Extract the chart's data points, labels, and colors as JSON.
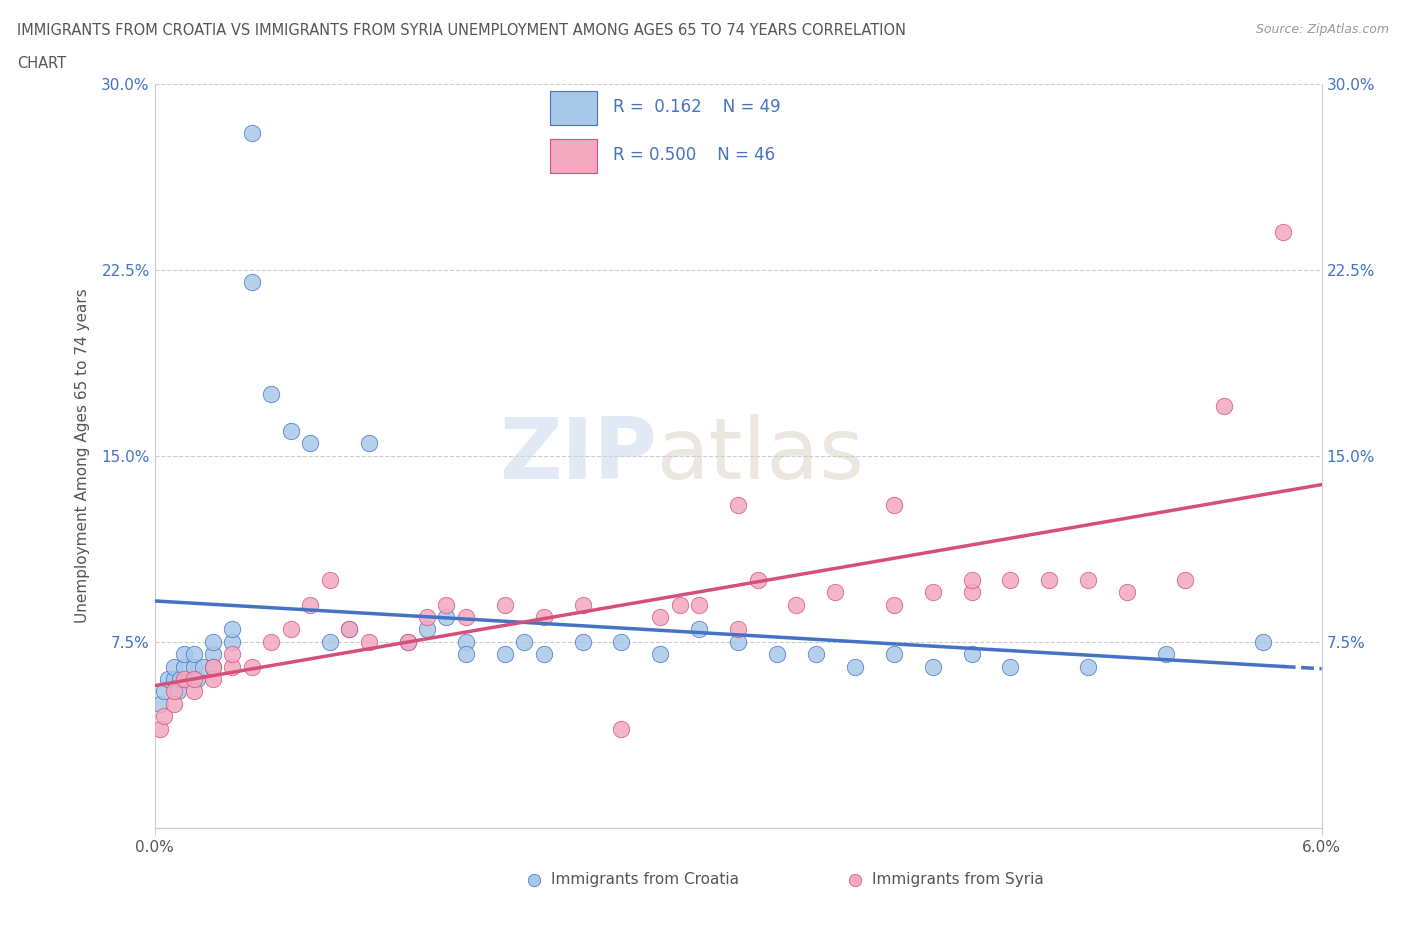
{
  "title_line1": "IMMIGRANTS FROM CROATIA VS IMMIGRANTS FROM SYRIA UNEMPLOYMENT AMONG AGES 65 TO 74 YEARS CORRELATION",
  "title_line2": "CHART",
  "source_text": "Source: ZipAtlas.com",
  "ylabel": "Unemployment Among Ages 65 to 74 years",
  "legend_label1": "Immigrants from Croatia",
  "legend_label2": "Immigrants from Syria",
  "color_croatia": "#a8c8e8",
  "color_syria": "#f4a8c0",
  "color_line_croatia": "#4472c4",
  "color_line_syria": "#d4507a",
  "color_tick_labels": "#4472c4",
  "xmin": 0.0,
  "xmax": 0.06,
  "ymin": 0.0,
  "ymax": 0.3,
  "ytick_pos": [
    0.075,
    0.15,
    0.225,
    0.3
  ],
  "ytick_labels": [
    "7.5%",
    "15.0%",
    "22.5%",
    "30.0%"
  ],
  "xtick_pos": [
    0.0,
    0.06
  ],
  "xtick_labels": [
    "0.0%",
    "6.0%"
  ],
  "croatia_x": [
    0.0003,
    0.0005,
    0.0007,
    0.001,
    0.001,
    0.0012,
    0.0013,
    0.0015,
    0.0015,
    0.002,
    0.002,
    0.0022,
    0.0025,
    0.003,
    0.003,
    0.003,
    0.004,
    0.004,
    0.005,
    0.005,
    0.006,
    0.007,
    0.008,
    0.009,
    0.01,
    0.011,
    0.013,
    0.014,
    0.015,
    0.016,
    0.016,
    0.018,
    0.019,
    0.02,
    0.022,
    0.024,
    0.026,
    0.028,
    0.03,
    0.032,
    0.034,
    0.036,
    0.038,
    0.04,
    0.042,
    0.044,
    0.048,
    0.052,
    0.057
  ],
  "croatia_y": [
    0.05,
    0.055,
    0.06,
    0.06,
    0.065,
    0.055,
    0.06,
    0.065,
    0.07,
    0.065,
    0.07,
    0.06,
    0.065,
    0.07,
    0.075,
    0.065,
    0.075,
    0.08,
    0.28,
    0.22,
    0.175,
    0.16,
    0.155,
    0.075,
    0.08,
    0.155,
    0.075,
    0.08,
    0.085,
    0.075,
    0.07,
    0.07,
    0.075,
    0.07,
    0.075,
    0.075,
    0.07,
    0.08,
    0.075,
    0.07,
    0.07,
    0.065,
    0.07,
    0.065,
    0.07,
    0.065,
    0.065,
    0.07,
    0.075
  ],
  "syria_x": [
    0.0003,
    0.0005,
    0.001,
    0.001,
    0.0015,
    0.002,
    0.002,
    0.003,
    0.003,
    0.004,
    0.004,
    0.005,
    0.006,
    0.007,
    0.008,
    0.009,
    0.01,
    0.011,
    0.013,
    0.014,
    0.015,
    0.016,
    0.018,
    0.02,
    0.022,
    0.024,
    0.026,
    0.028,
    0.03,
    0.031,
    0.033,
    0.035,
    0.038,
    0.04,
    0.042,
    0.044,
    0.046,
    0.03,
    0.038,
    0.042,
    0.048,
    0.05,
    0.053,
    0.027,
    0.055,
    0.058
  ],
  "syria_y": [
    0.04,
    0.045,
    0.05,
    0.055,
    0.06,
    0.055,
    0.06,
    0.06,
    0.065,
    0.065,
    0.07,
    0.065,
    0.075,
    0.08,
    0.09,
    0.1,
    0.08,
    0.075,
    0.075,
    0.085,
    0.09,
    0.085,
    0.09,
    0.085,
    0.09,
    0.04,
    0.085,
    0.09,
    0.08,
    0.1,
    0.09,
    0.095,
    0.09,
    0.095,
    0.095,
    0.1,
    0.1,
    0.13,
    0.13,
    0.1,
    0.1,
    0.095,
    0.1,
    0.09,
    0.17,
    0.24
  ]
}
